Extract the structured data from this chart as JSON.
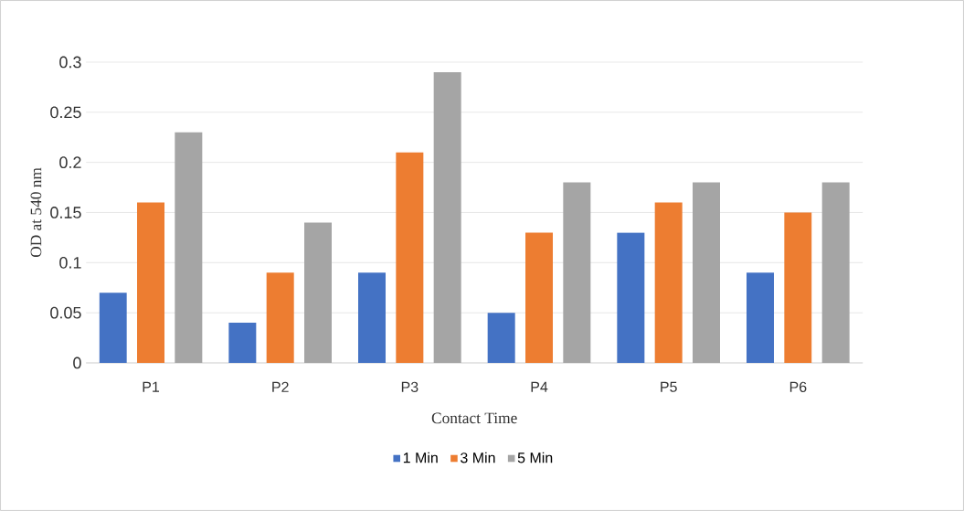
{
  "chart_data": {
    "type": "bar",
    "xlabel": "Contact Time",
    "ylabel": "OD at 540 nm",
    "categories": [
      "P1",
      "P2",
      "P3",
      "P4",
      "P5",
      "P6"
    ],
    "series": [
      {
        "name": "1 Min",
        "color": "#4472c4",
        "values": [
          0.07,
          0.04,
          0.09,
          0.05,
          0.13,
          0.09
        ]
      },
      {
        "name": "3 Min",
        "color": "#ed7d31",
        "values": [
          0.16,
          0.09,
          0.21,
          0.13,
          0.16,
          0.15
        ]
      },
      {
        "name": "5 Min",
        "color": "#a5a5a5",
        "values": [
          0.23,
          0.14,
          0.29,
          0.18,
          0.18,
          0.18
        ]
      }
    ],
    "ylim": [
      0,
      0.3
    ],
    "yticks": [
      0,
      0.05,
      0.1,
      0.15,
      0.2,
      0.25,
      0.3
    ],
    "grid": "y",
    "legend": "bottom"
  }
}
